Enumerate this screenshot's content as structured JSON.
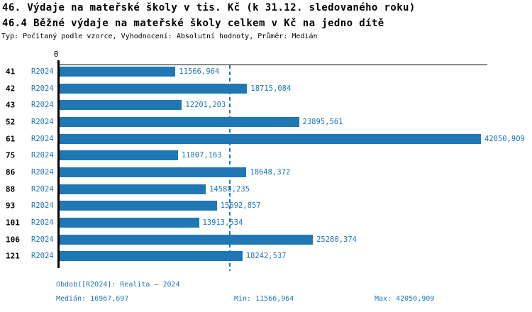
{
  "title1": "46. Výdaje na mateřské školy v tis. Kč (k 31.12. sledovaného roku)",
  "title2": "46.4 Běžné výdaje na mateřské školy celkem v Kč na jedno dítě",
  "subtitle": "Typ: Počítaný podle vzorce, Vyhodnocení: Absolutní hodnoty, Průměr: Medián",
  "chart_data": {
    "type": "bar",
    "orientation": "horizontal",
    "title": "46.4 Běžné výdaje na mateřské školy celkem v Kč na jedno dítě",
    "categories": [
      "41",
      "42",
      "43",
      "52",
      "61",
      "75",
      "86",
      "88",
      "93",
      "101",
      "106",
      "121"
    ],
    "series_label": "R2024",
    "values": [
      11566.964,
      18715.084,
      12201.203,
      23895.561,
      42050.909,
      11807.163,
      18648.372,
      14588.235,
      15692.857,
      13913.534,
      25280.374,
      18242.537
    ],
    "value_labels": [
      "11566,964",
      "18715,084",
      "12201,203",
      "23895,561",
      "42050,909",
      "11807,163",
      "18648,372",
      "14588,235",
      "15692,857",
      "13913,534",
      "25280,374",
      "18242,537"
    ],
    "xlim": [
      0,
      42050.909
    ],
    "zero_tick_label": "0",
    "median_value": 16967.697,
    "grid": false,
    "legend": "none",
    "bar_color": "#1f77b4",
    "median_line_color": "#1f77b4",
    "axis_color": "#000000"
  },
  "footer": {
    "period": "Období[R2024]: Realita – 2024",
    "median": "Medián: 16967,697",
    "min": "Min: 11566,964",
    "max": "Max: 42050,909"
  },
  "colors": {
    "accent": "#1f77b4",
    "background": "#ffffff",
    "title_text": "#000000"
  }
}
